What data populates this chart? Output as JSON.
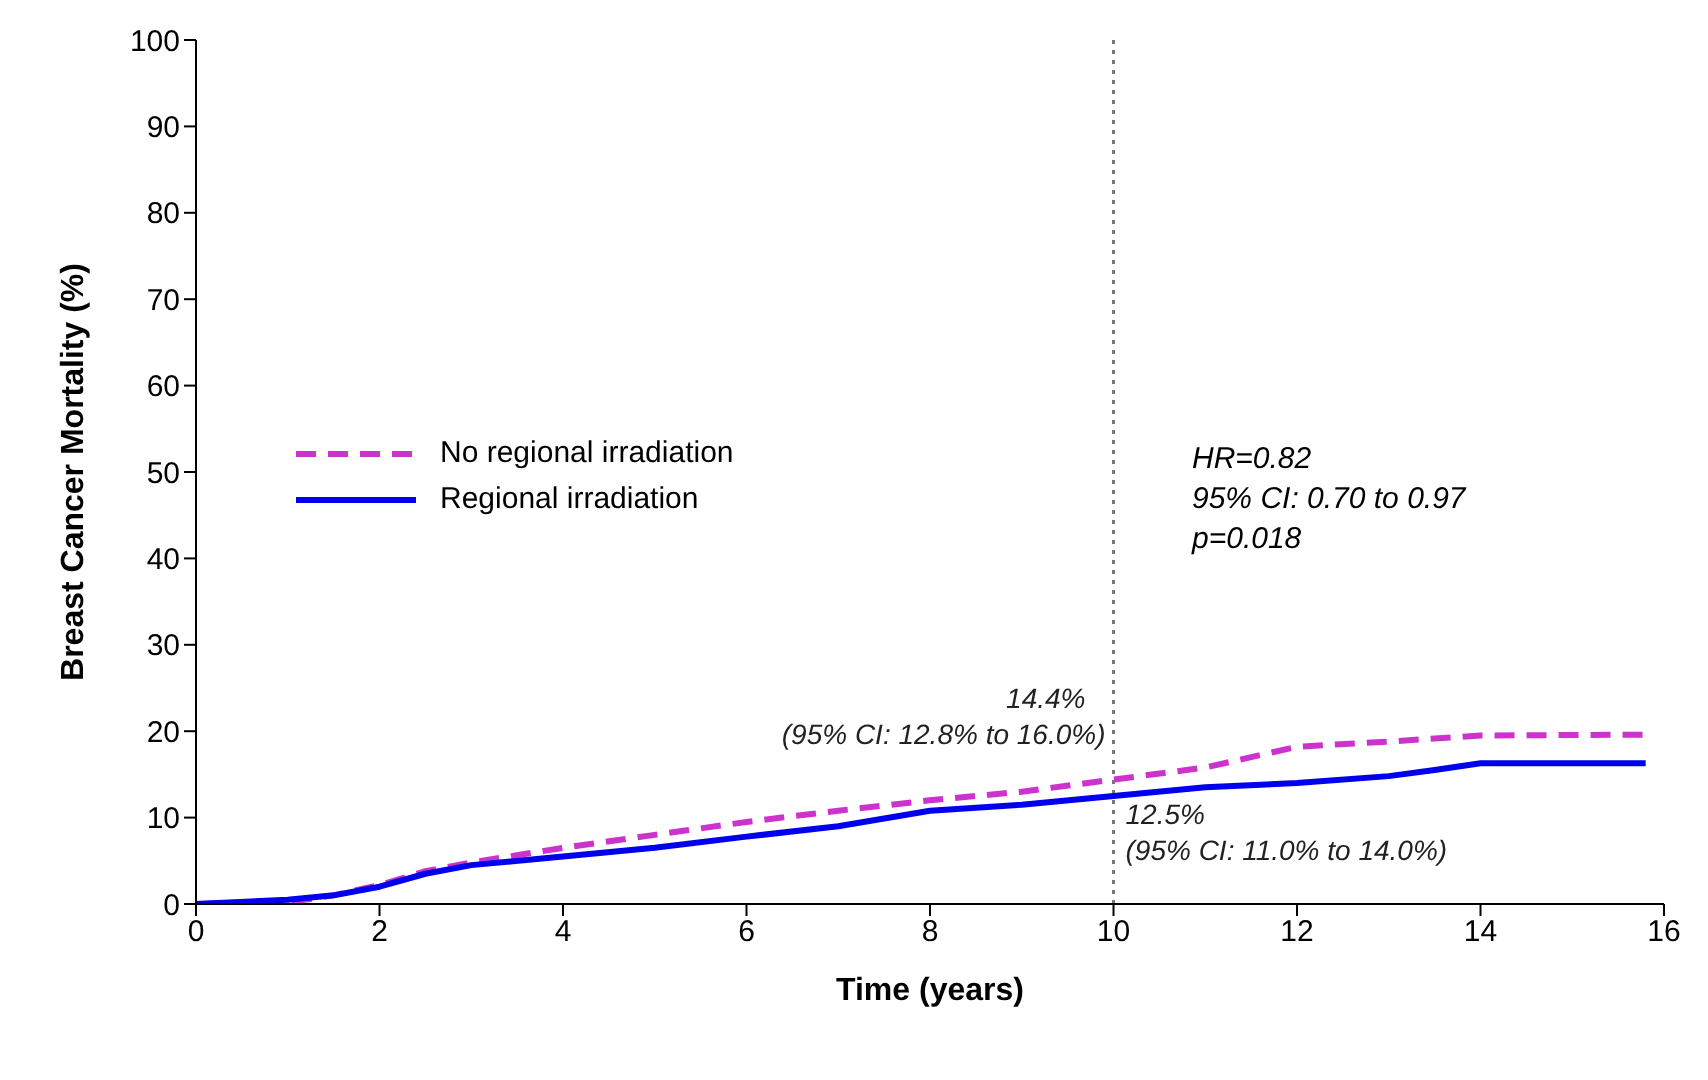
{
  "chart_data": {
    "type": "line",
    "xlabel": "Time (years)",
    "ylabel": "Breast Cancer Mortality (%)",
    "xlim": [
      0,
      16
    ],
    "xticks": [
      0,
      2,
      4,
      6,
      8,
      10,
      12,
      14,
      16
    ],
    "ylim": [
      0,
      100
    ],
    "yticks": [
      0,
      10,
      20,
      30,
      40,
      50,
      60,
      70,
      80,
      90,
      100
    ],
    "legend": "left",
    "marker": "none",
    "series": [
      {
        "name": "No regional irradiation",
        "color": "#cc33cc",
        "line_style": "dashed",
        "x": [
          0,
          1,
          1.5,
          2,
          2.5,
          3,
          4,
          5,
          6,
          7,
          8,
          9,
          10,
          11,
          12,
          13,
          14,
          15.8
        ],
        "values": [
          0,
          0.2,
          1,
          2.2,
          3.8,
          4.8,
          6.5,
          8,
          9.5,
          10.8,
          12,
          13,
          14.4,
          15.8,
          18.2,
          18.8,
          19.5,
          19.6
        ]
      },
      {
        "name": "Regional irradiation",
        "color": "#0000ee",
        "line_style": "solid",
        "x": [
          0,
          1,
          1.5,
          2,
          2.5,
          3,
          4,
          5,
          6,
          7,
          8,
          9,
          10,
          11,
          12,
          13,
          13.5,
          14,
          15.8
        ],
        "values": [
          0,
          0.5,
          1,
          2,
          3.5,
          4.5,
          5.5,
          6.5,
          7.8,
          9,
          10.8,
          11.5,
          12.5,
          13.5,
          14,
          14.8,
          15.5,
          16.3,
          16.3
        ]
      }
    ],
    "ref_lines": [
      {
        "axis": "x",
        "value": 10,
        "color": "#777777",
        "line_style": "dotted"
      }
    ],
    "annotations": [
      {
        "text": "14.4%\n(95% CI: 12.8% to 16.0%)",
        "x": 10,
        "y": 14.4
      },
      {
        "text": "12.5%\n(95% CI: 11.0% to 14.0%)",
        "x": 10,
        "y": 12.5
      },
      "HR=0.82\n95% CI: 0.70 to 0.97\np=0.018"
    ]
  }
}
